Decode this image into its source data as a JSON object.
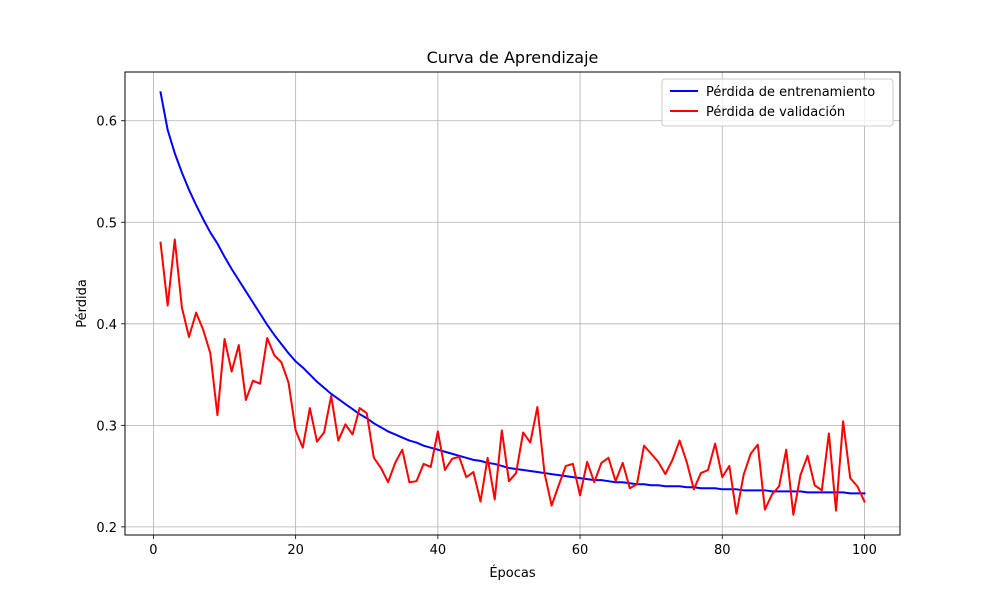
{
  "chart_data": {
    "type": "line",
    "title": "Curva de Aprendizaje",
    "xlabel": "Épocas",
    "ylabel": "Pérdida",
    "xlim": [
      -4,
      105
    ],
    "ylim": [
      0.192,
      0.648
    ],
    "xticks": [
      0,
      20,
      40,
      60,
      80,
      100
    ],
    "yticks": [
      0.2,
      0.3,
      0.4,
      0.5,
      0.6
    ],
    "grid": true,
    "legend_position": "top-right",
    "x": [
      1,
      2,
      3,
      4,
      5,
      6,
      7,
      8,
      9,
      10,
      11,
      12,
      13,
      14,
      15,
      16,
      17,
      18,
      19,
      20,
      21,
      22,
      23,
      24,
      25,
      26,
      27,
      28,
      29,
      30,
      31,
      32,
      33,
      34,
      35,
      36,
      37,
      38,
      39,
      40,
      41,
      42,
      43,
      44,
      45,
      46,
      47,
      48,
      49,
      50,
      51,
      52,
      53,
      54,
      55,
      56,
      57,
      58,
      59,
      60,
      61,
      62,
      63,
      64,
      65,
      66,
      67,
      68,
      69,
      70,
      71,
      72,
      73,
      74,
      75,
      76,
      77,
      78,
      79,
      80,
      81,
      82,
      83,
      84,
      85,
      86,
      87,
      88,
      89,
      90,
      91,
      92,
      93,
      94,
      95,
      96,
      97,
      98,
      99,
      100
    ],
    "series": [
      {
        "name": "Pérdida de entrenamiento",
        "color": "#0000ff",
        "values": [
          0.628,
          0.591,
          0.568,
          0.549,
          0.532,
          0.517,
          0.503,
          0.49,
          0.479,
          0.466,
          0.454,
          0.443,
          0.432,
          0.421,
          0.41,
          0.399,
          0.389,
          0.38,
          0.371,
          0.363,
          0.357,
          0.35,
          0.343,
          0.337,
          0.331,
          0.326,
          0.321,
          0.316,
          0.311,
          0.307,
          0.302,
          0.298,
          0.294,
          0.291,
          0.288,
          0.285,
          0.283,
          0.28,
          0.278,
          0.276,
          0.274,
          0.272,
          0.27,
          0.268,
          0.266,
          0.265,
          0.263,
          0.262,
          0.26,
          0.258,
          0.257,
          0.256,
          0.255,
          0.254,
          0.253,
          0.252,
          0.251,
          0.25,
          0.249,
          0.248,
          0.247,
          0.246,
          0.246,
          0.245,
          0.244,
          0.244,
          0.243,
          0.242,
          0.242,
          0.241,
          0.241,
          0.24,
          0.24,
          0.24,
          0.239,
          0.239,
          0.238,
          0.238,
          0.238,
          0.237,
          0.237,
          0.237,
          0.236,
          0.236,
          0.236,
          0.236,
          0.235,
          0.235,
          0.235,
          0.235,
          0.235,
          0.234,
          0.234,
          0.234,
          0.234,
          0.234,
          0.234,
          0.233,
          0.233,
          0.233
        ]
      },
      {
        "name": "Pérdida de validación",
        "color": "#ff0000",
        "values": [
          0.48,
          0.418,
          0.483,
          0.416,
          0.387,
          0.411,
          0.394,
          0.371,
          0.31,
          0.385,
          0.353,
          0.379,
          0.325,
          0.344,
          0.341,
          0.386,
          0.369,
          0.362,
          0.342,
          0.295,
          0.278,
          0.317,
          0.284,
          0.293,
          0.329,
          0.285,
          0.301,
          0.291,
          0.317,
          0.312,
          0.268,
          0.258,
          0.244,
          0.263,
          0.276,
          0.244,
          0.245,
          0.262,
          0.259,
          0.294,
          0.256,
          0.267,
          0.269,
          0.249,
          0.254,
          0.225,
          0.268,
          0.227,
          0.295,
          0.245,
          0.253,
          0.293,
          0.283,
          0.318,
          0.253,
          0.221,
          0.241,
          0.26,
          0.262,
          0.231,
          0.264,
          0.244,
          0.263,
          0.268,
          0.245,
          0.263,
          0.238,
          0.242,
          0.28,
          0.272,
          0.264,
          0.252,
          0.266,
          0.285,
          0.264,
          0.237,
          0.253,
          0.256,
          0.282,
          0.249,
          0.26,
          0.213,
          0.251,
          0.272,
          0.281,
          0.217,
          0.232,
          0.24,
          0.276,
          0.212,
          0.251,
          0.27,
          0.241,
          0.236,
          0.292,
          0.216,
          0.304,
          0.248,
          0.24,
          0.225
        ]
      }
    ]
  }
}
